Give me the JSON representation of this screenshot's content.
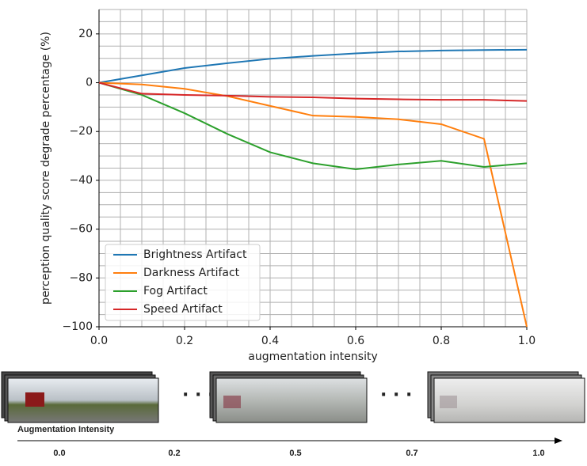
{
  "chart_data": {
    "type": "line",
    "x_label": "augmentation intensity",
    "y_label": "perception quality score degrade percentage (%)",
    "x": [
      0,
      0.1,
      0.2,
      0.3,
      0.4,
      0.5,
      0.6,
      0.7,
      0.8,
      0.9,
      1.0
    ],
    "series": [
      {
        "name": "Brightness Artifact",
        "color": "#1f77b4",
        "values": [
          0,
          3,
          6,
          8,
          9.8,
          11,
          12,
          12.8,
          13.2,
          13.4,
          13.5
        ]
      },
      {
        "name": "Darkness Artifact",
        "color": "#ff7f0e",
        "values": [
          0,
          -0.7,
          -2.5,
          -5.5,
          -9.5,
          -13.5,
          -14,
          -15,
          -17,
          -23,
          -100
        ]
      },
      {
        "name": "Fog Artifact",
        "color": "#2ca02c",
        "values": [
          0,
          -5,
          -12.5,
          -21,
          -28.5,
          -33,
          -35.5,
          -33.5,
          -32,
          -34.5,
          -33
        ]
      },
      {
        "name": "Speed Artifact",
        "color": "#d62728",
        "values": [
          0,
          -4.5,
          -5,
          -5.3,
          -5.8,
          -6,
          -6.5,
          -6.8,
          -7,
          -7,
          -7.5
        ]
      }
    ],
    "xlim": [
      0,
      1
    ],
    "ylim": [
      -100,
      30
    ],
    "xticks": [
      {
        "value": 0,
        "label": "0.0"
      },
      {
        "value": 0.2,
        "label": "0.2"
      },
      {
        "value": 0.4,
        "label": "0.4"
      },
      {
        "value": 0.6,
        "label": "0.6"
      },
      {
        "value": 0.8,
        "label": "0.8"
      },
      {
        "value": 1,
        "label": "1.0"
      }
    ],
    "yticks": [
      {
        "value": -100,
        "label": "−100"
      },
      {
        "value": -80,
        "label": "−80"
      },
      {
        "value": -60,
        "label": "−60"
      },
      {
        "value": -40,
        "label": "−40"
      },
      {
        "value": -20,
        "label": "−20"
      },
      0,
      20
    ],
    "grid": true,
    "minor_grid_step_x": 0.05,
    "minor_grid_step_y": 5,
    "legend": "lower left"
  },
  "strip": {
    "label": "Augmentation Intensity",
    "ticks": [
      "0.0",
      "0.2",
      "0.5",
      "0.7",
      "1.0"
    ]
  }
}
